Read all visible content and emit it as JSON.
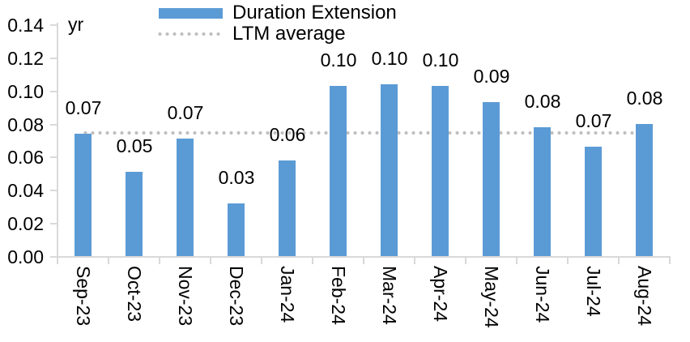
{
  "chart_data": {
    "type": "bar",
    "unit_label": "yr",
    "categories": [
      "Sep-23",
      "Oct-23",
      "Nov-23",
      "Dec-23",
      "Jan-24",
      "Feb-24",
      "Mar-24",
      "Apr-24",
      "May-24",
      "Jun-24",
      "Jul-24",
      "Aug-24"
    ],
    "series": [
      {
        "name": "Duration Extension",
        "type": "bar",
        "color": "#5B9BD5",
        "values": [
          0.074,
          0.051,
          0.071,
          0.032,
          0.058,
          0.103,
          0.104,
          0.103,
          0.093,
          0.078,
          0.066,
          0.08
        ],
        "data_labels": [
          "0.07",
          "0.05",
          "0.07",
          "0.03",
          "0.06",
          "0.10",
          "0.10",
          "0.10",
          "0.09",
          "0.08",
          "0.07",
          "0.08"
        ]
      },
      {
        "name": "LTM average",
        "type": "line",
        "line_style": "dotted",
        "color": "#BFBFBF",
        "value": 0.0745
      }
    ],
    "ylim": [
      0,
      0.14
    ],
    "ytick_labels": [
      "0.00",
      "0.02",
      "0.04",
      "0.06",
      "0.08",
      "0.10",
      "0.12",
      "0.14"
    ],
    "grid": false,
    "legend_position": "top-center",
    "axis_color": "#D9D9D9",
    "text_color": "#000000"
  }
}
